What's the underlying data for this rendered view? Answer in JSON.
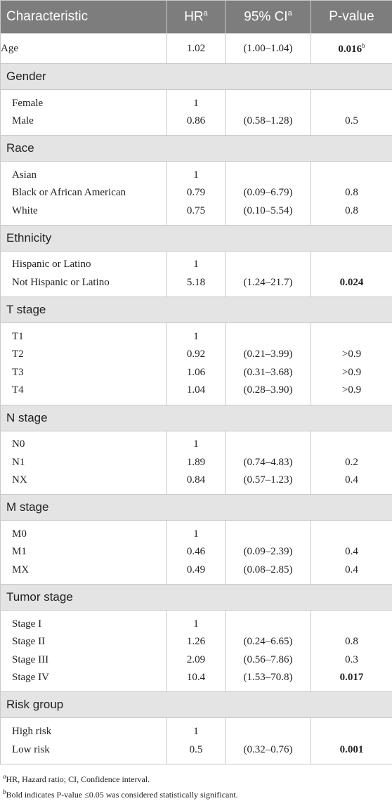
{
  "header": [
    {
      "text": "Characteristic"
    },
    {
      "text": "HR",
      "sup": "a"
    },
    {
      "text": "95% CI",
      "sup": "a"
    },
    {
      "text": "P-value"
    }
  ],
  "rows": [
    {
      "label": "Age",
      "hr": "1.02",
      "ci": "(1.00–1.04)",
      "p": "0.016",
      "p_bold": true,
      "p_sup": "b"
    }
  ],
  "groups": [
    {
      "title": "Gender",
      "rows": [
        {
          "label": "Female",
          "hr": "1"
        },
        {
          "label": "Male",
          "hr": "0.86",
          "ci": "(0.58–1.28)",
          "p": "0.5"
        }
      ]
    },
    {
      "title": "Race",
      "rows": [
        {
          "label": "Asian",
          "hr": "1"
        },
        {
          "label": "Black or African American",
          "hr": "0.79",
          "ci": "(0.09–6.79)",
          "p": "0.8"
        },
        {
          "label": "White",
          "hr": "0.75",
          "ci": "(0.10–5.54)",
          "p": "0.8"
        }
      ]
    },
    {
      "title": "Ethnicity",
      "rows": [
        {
          "label": "Hispanic or Latino",
          "hr": "1"
        },
        {
          "label": "Not Hispanic or Latino",
          "hr": "5.18",
          "ci": "(1.24–21.7)",
          "p": "0.024",
          "p_bold": true
        }
      ]
    },
    {
      "title": "T stage",
      "rows": [
        {
          "label": "T1",
          "hr": "1"
        },
        {
          "label": "T2",
          "hr": "0.92",
          "ci": "(0.21–3.99)",
          "p": ">0.9"
        },
        {
          "label": "T3",
          "hr": "1.06",
          "ci": "(0.31–3.68)",
          "p": ">0.9"
        },
        {
          "label": "T4",
          "hr": "1.04",
          "ci": "(0.28–3.90)",
          "p": ">0.9"
        }
      ]
    },
    {
      "title": "N stage",
      "rows": [
        {
          "label": "N0",
          "hr": "1"
        },
        {
          "label": "N1",
          "hr": "1.89",
          "ci": "(0.74–4.83)",
          "p": "0.2"
        },
        {
          "label": "NX",
          "hr": "0.84",
          "ci": "(0.57–1.23)",
          "p": "0.4"
        }
      ]
    },
    {
      "title": "M stage",
      "rows": [
        {
          "label": "M0",
          "hr": "1"
        },
        {
          "label": "M1",
          "hr": "0.46",
          "ci": "(0.09–2.39)",
          "p": "0.4"
        },
        {
          "label": "MX",
          "hr": "0.49",
          "ci": "(0.08–2.85)",
          "p": "0.4"
        }
      ]
    },
    {
      "title": "Tumor stage",
      "rows": [
        {
          "label": "Stage I",
          "hr": "1"
        },
        {
          "label": "Stage II",
          "hr": "1.26",
          "ci": "(0.24–6.65)",
          "p": "0.8"
        },
        {
          "label": "Stage III",
          "hr": "2.09",
          "ci": "(0.56–7.86)",
          "p": "0.3"
        },
        {
          "label": "Stage IV",
          "hr": "10.4",
          "ci": "(1.53–70.8)",
          "p": "0.017",
          "p_bold": true
        }
      ]
    },
    {
      "title": "Risk group",
      "rows": [
        {
          "label": "High risk",
          "hr": "1"
        },
        {
          "label": "Low risk",
          "hr": "0.5",
          "ci": "(0.32–0.76)",
          "p": "0.001",
          "p_bold": true
        }
      ]
    }
  ],
  "footnotes": [
    {
      "sup": "a",
      "text": "HR, Hazard ratio; CI, Confidence interval."
    },
    {
      "sup": "b",
      "text": "Bold indicates P-value ≤0.05 was considered statistically significant."
    }
  ]
}
